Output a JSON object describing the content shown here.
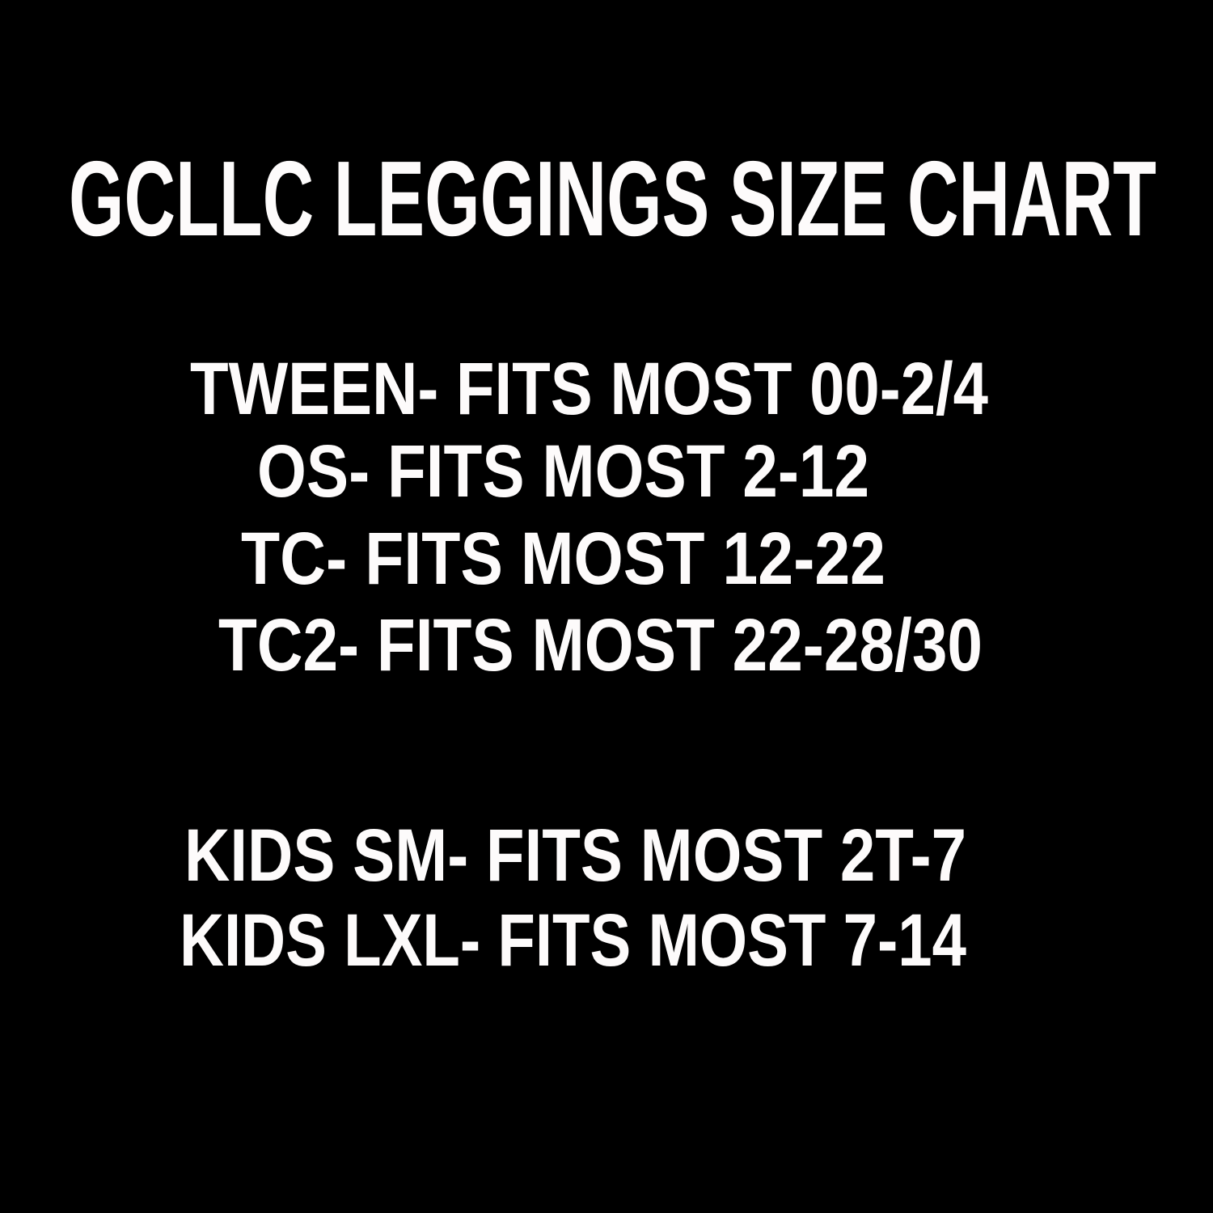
{
  "title": "GCLLC LEGGINGS SIZE CHART",
  "sizes": [
    "TWEEN- FITS MOST 00-2/4",
    "OS- FITS MOST 2-12",
    "TC- FITS MOST 12-22",
    "TC2- FITS MOST 22-28/30",
    "KIDS SM- FITS MOST 2T-7",
    "KIDS LXL- FITS MOST 7-14"
  ],
  "colors": {
    "background": "#000000",
    "text": "#fdfbfb"
  }
}
